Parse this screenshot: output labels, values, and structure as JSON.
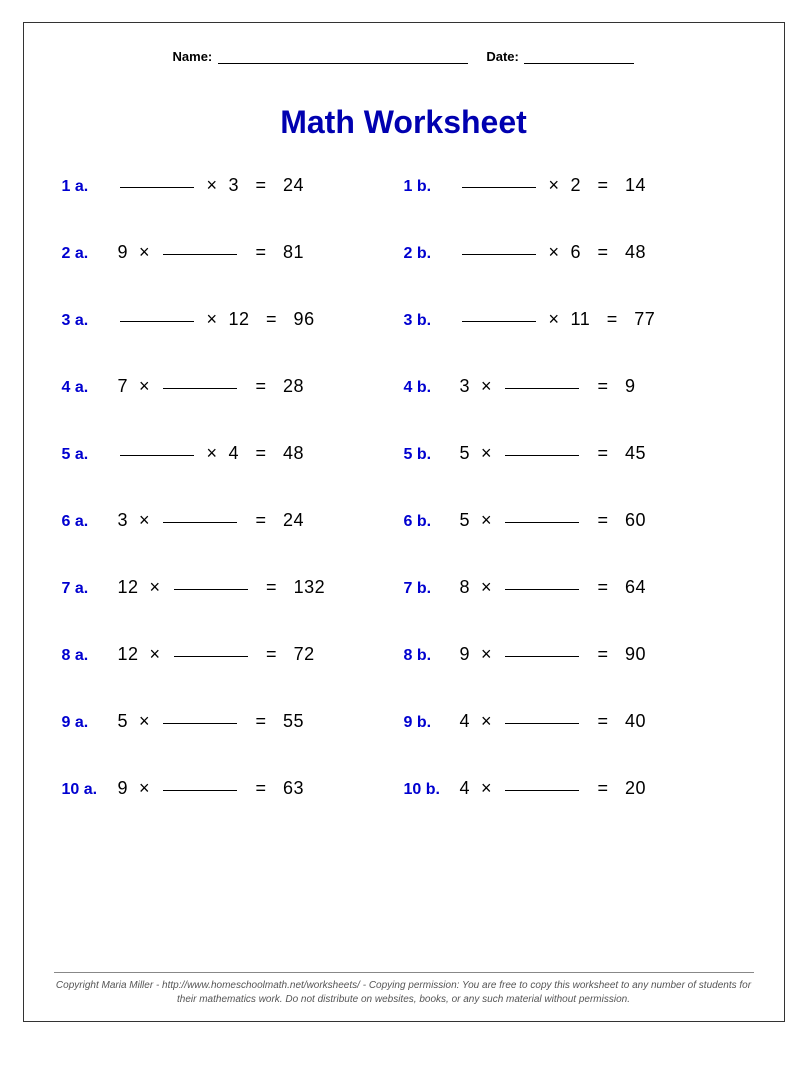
{
  "header": {
    "name_label": "Name:",
    "date_label": "Date:"
  },
  "title": "Math Worksheet",
  "colors": {
    "title_color": "#0000b0",
    "label_color": "#0000d0",
    "text_color": "#000000",
    "border_color": "#333333",
    "footer_color": "#555555",
    "background": "#ffffff"
  },
  "typography": {
    "title_fontsize": 32,
    "label_fontsize": 16,
    "problem_fontsize": 18,
    "header_fontsize": 13,
    "footer_fontsize": 10
  },
  "layout": {
    "columns": 2,
    "rows": 10,
    "row_gap": 46,
    "blank_width": 74
  },
  "problems": [
    {
      "id": "1 a.",
      "pre": "",
      "post": "  ×  3   =   24"
    },
    {
      "id": "1 b.",
      "pre": "",
      "post": "  ×  2   =   14"
    },
    {
      "id": "2 a.",
      "pre": "9  ×  ",
      "post": "   =   81"
    },
    {
      "id": "2 b.",
      "pre": "",
      "post": "  ×  6   =   48"
    },
    {
      "id": "3 a.",
      "pre": "",
      "post": "  ×  12   =   96"
    },
    {
      "id": "3 b.",
      "pre": "",
      "post": "  ×  11   =   77"
    },
    {
      "id": "4 a.",
      "pre": "7  ×  ",
      "post": "   =   28"
    },
    {
      "id": "4 b.",
      "pre": "3  ×  ",
      "post": "   =   9"
    },
    {
      "id": "5 a.",
      "pre": "",
      "post": "  ×  4   =   48"
    },
    {
      "id": "5 b.",
      "pre": "5  ×  ",
      "post": "   =   45"
    },
    {
      "id": "6 a.",
      "pre": "3  ×  ",
      "post": "   =   24"
    },
    {
      "id": "6 b.",
      "pre": "5  ×  ",
      "post": "   =   60"
    },
    {
      "id": "7 a.",
      "pre": "12  ×  ",
      "post": "   =   132"
    },
    {
      "id": "7 b.",
      "pre": "8  ×  ",
      "post": "   =   64"
    },
    {
      "id": "8 a.",
      "pre": "12  ×  ",
      "post": "   =   72"
    },
    {
      "id": "8 b.",
      "pre": "9  ×  ",
      "post": "   =   90"
    },
    {
      "id": "9 a.",
      "pre": "5  ×  ",
      "post": "   =   55"
    },
    {
      "id": "9 b.",
      "pre": "4  ×  ",
      "post": "   =   40"
    },
    {
      "id": "10 a.",
      "pre": "9  ×  ",
      "post": "   =   63"
    },
    {
      "id": "10 b.",
      "pre": "4  ×  ",
      "post": "   =   20"
    }
  ],
  "footer": "Copyright Maria Miller - http://www.homeschoolmath.net/worksheets/ - Copying permission: You are free to copy this worksheet to any number of students for their mathematics work. Do not distribute on websites, books, or any such material without permission."
}
